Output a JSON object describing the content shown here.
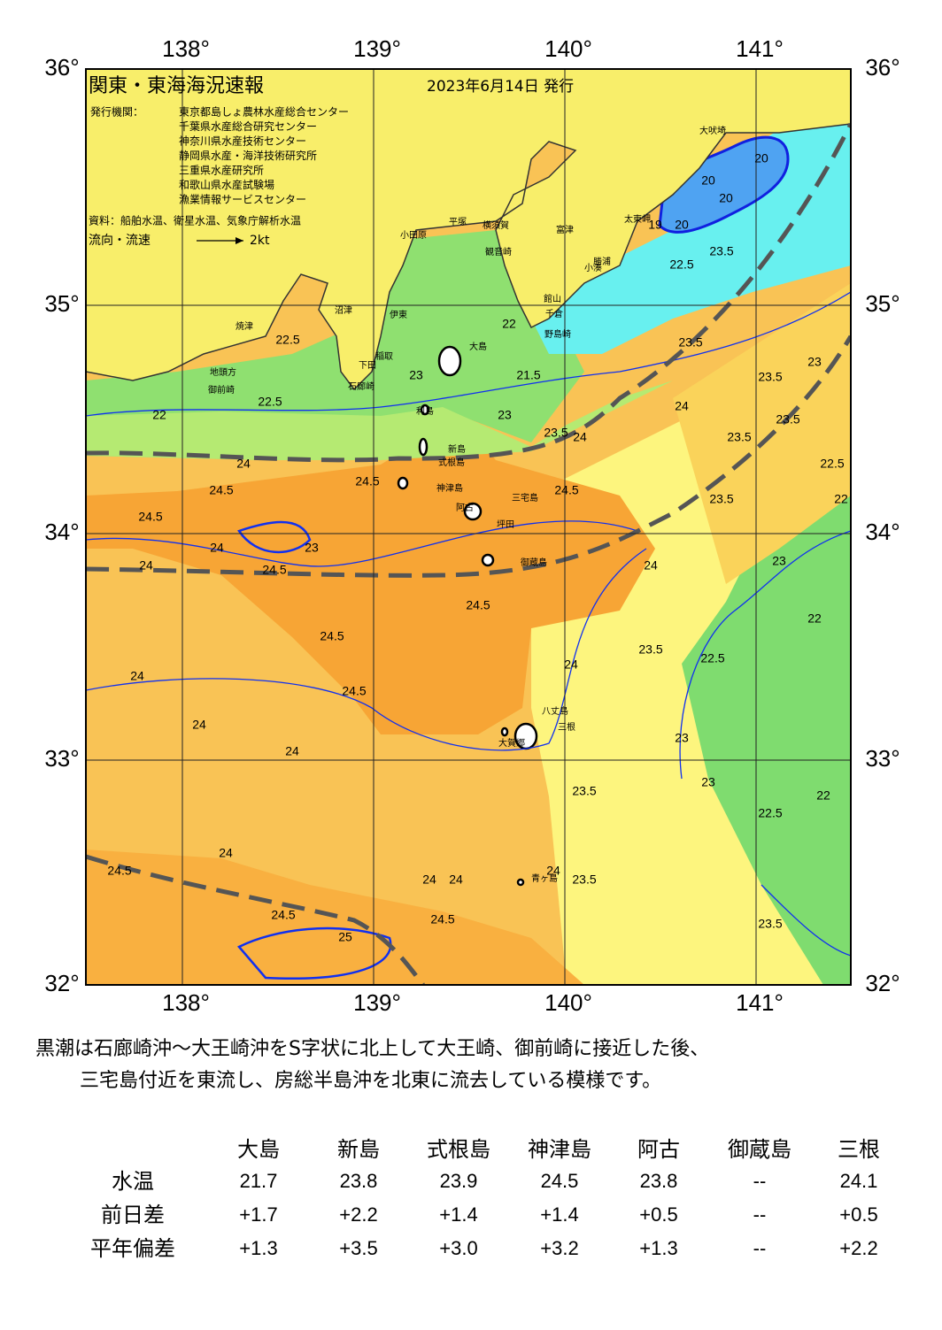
{
  "header": {
    "title": "関東・東海海況速報",
    "date": "2023年6月14日 発行",
    "agencies_label": "発行機関：",
    "agencies": [
      "東京都島しょ農林水産総合センター",
      "千葉県水産総合研究センター",
      "神奈川県水産技術センター",
      "静岡県水産・海洋技術研究所",
      "三重県水産研究所",
      "和歌山県水産試験場",
      "漁業情報サービスセンター"
    ],
    "source": "資料：船舶水温、衛星水温、気象庁解析水温",
    "legend_label": "流向・流速",
    "legend_speed": "2kt"
  },
  "map": {
    "lon_labels": [
      "138°",
      "139°",
      "140°",
      "141°"
    ],
    "lat_labels": [
      "36°",
      "35°",
      "34°",
      "33°",
      "32°"
    ],
    "places": [
      "大吠埼",
      "太東岬",
      "勝浦",
      "小湊",
      "富津",
      "館山",
      "千倉",
      "野島崎",
      "観音崎",
      "横須賀",
      "平塚",
      "小田原",
      "伊東",
      "沼津",
      "焼津",
      "稲取",
      "下田",
      "石廊崎",
      "御前崎",
      "地頭方",
      "大島",
      "利島",
      "新島",
      "式根島",
      "神津島",
      "三宅島",
      "阿古",
      "坪田",
      "御蔵島",
      "八丈島",
      "三根",
      "大賀郷",
      "青ヶ島"
    ],
    "contour_labels": [
      "22.5",
      "22.5",
      "22",
      "24",
      "24.5",
      "24.5",
      "24",
      "23",
      "24",
      "24.5",
      "24.5",
      "23",
      "21.5",
      "22",
      "23",
      "23.5",
      "24",
      "24.5",
      "24.5",
      "24.5",
      "24.5",
      "24",
      "24",
      "24",
      "24",
      "23.5",
      "24",
      "23",
      "22.5",
      "23",
      "22.5",
      "22",
      "23",
      "22",
      "23.5",
      "23.5",
      "22.5",
      "22",
      "23.5",
      "23.5",
      "23",
      "24",
      "23.5",
      "20",
      "20",
      "20",
      "19",
      "20",
      "22.5",
      "23.5",
      "24.5",
      "24",
      "24.5",
      "25",
      "24.5",
      "24",
      "24",
      "23.5",
      "23.5",
      "23.5",
      "24"
    ]
  },
  "summary": [
    "黒潮は石廊崎沖～大王崎沖をS字状に北上して大王崎、御前崎に接近した後、",
    "三宅島付近を東流し、房総半島沖を北東に流去している模様です。"
  ],
  "table": {
    "columns": [
      "大島",
      "新島",
      "式根島",
      "神津島",
      "阿古",
      "御蔵島",
      "三根"
    ],
    "rows": [
      {
        "label": "水温",
        "cells": [
          "21.7",
          "23.8",
          "23.9",
          "24.5",
          "23.8",
          "--",
          "24.1"
        ]
      },
      {
        "label": "前日差",
        "cells": [
          "+1.7",
          "+2.2",
          "+1.4",
          "+1.4",
          "+0.5",
          "--",
          "+0.5"
        ]
      },
      {
        "label": "平年偏差",
        "cells": [
          "+1.3",
          "+3.5",
          "+3.0",
          "+3.2",
          "+1.3",
          "--",
          "+2.2"
        ]
      }
    ]
  }
}
